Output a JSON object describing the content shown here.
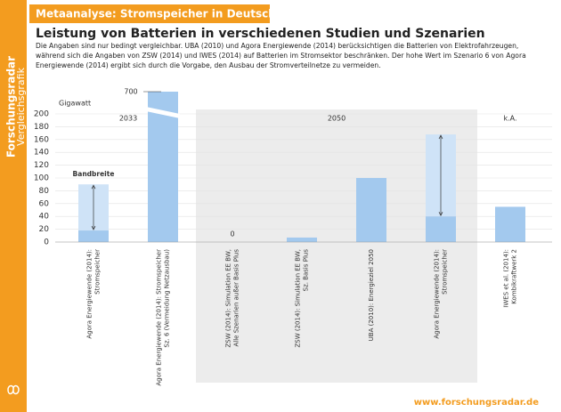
{
  "header": {
    "side_title": "Forschungsradar",
    "side_subtitle": "Vergleichsgrafik",
    "banner": "Metaanalyse: Stromspeicher in Deutschland",
    "footer": "www.forschungsradar.de"
  },
  "chart_data": {
    "type": "bar",
    "title": "Leistung von Batterien in verschiedenen Studien und Szenarien",
    "description": [
      "Die Angaben sind nur bedingt vergleichbar. UBA (2010) und Agora Energiewende (2014) berücksichtigen die Batterien von Elektrofahrzeugen,",
      "während sich die Angaben von ZSW (2014) und IWES (2014) auf Batterien im Stromsektor beschränken. Der hohe Wert im Szenario 6 von Agora",
      "Energiewende (2014) ergibt sich durch die Vorgabe, den Ausbau der Stromverteilnetze zu vermeiden."
    ],
    "y_label": "Gigawatt",
    "periods": [
      "2033",
      "2050",
      "k.A."
    ],
    "categories": [
      [
        "Agora Energiewende (2014):",
        "Stromspeicher"
      ],
      [
        "Agora Energiewende (2014): Stromspeicher",
        "Sz. 6 (Vermeidung Netzausbau)"
      ],
      [
        "ZSW (2014): Simulation EE BW,",
        "Alle Szenarien außer Basis Plus"
      ],
      [
        "ZSW (2014): Simulation EE BW,",
        "Sz. Basis Plus"
      ],
      [
        "UBA (2010): Energieziel 2050"
      ],
      [
        "Agora Energiewende (2014):",
        "Stromspeicher"
      ],
      [
        "IWES et al. (2014):",
        "Kombikraftwerk 2"
      ]
    ],
    "series": [
      {
        "color": "#a3c9ee",
        "values": [
          18,
          700,
          0,
          7,
          100,
          40,
          55
        ],
        "value_labels": [
          null,
          "700",
          "0",
          null,
          null,
          null,
          null
        ]
      },
      {
        "name": "Bandbreite",
        "color": "#cfe3f7",
        "values": [
          90,
          null,
          null,
          null,
          null,
          168,
          null
        ]
      }
    ],
    "ylim": [
      0,
      200
    ],
    "yticks": [
      0,
      20,
      40,
      60,
      80,
      100,
      120,
      140,
      160,
      180,
      200
    ],
    "grid": true
  }
}
